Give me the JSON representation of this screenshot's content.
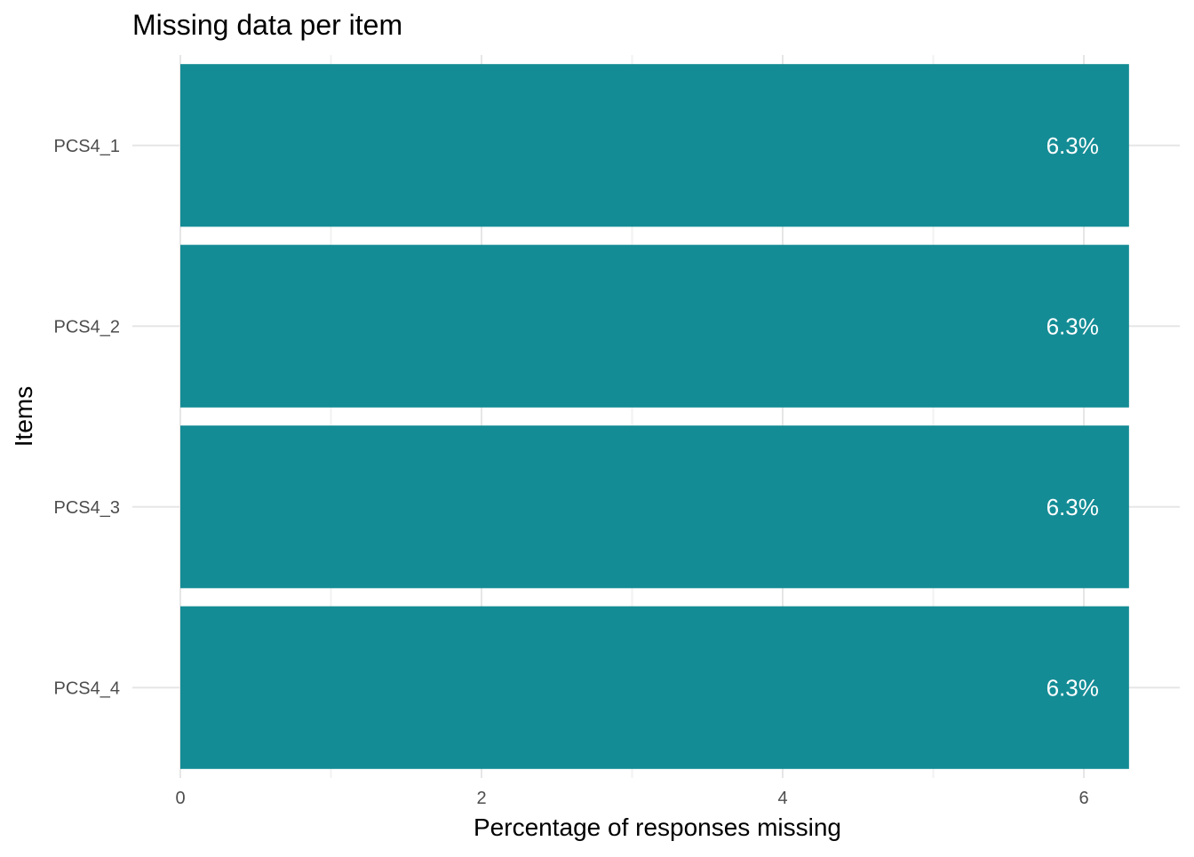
{
  "chart_data": {
    "type": "bar",
    "orientation": "horizontal",
    "title": "Missing data per item",
    "xlabel": "Percentage of responses missing",
    "ylabel": "Items",
    "categories": [
      "PCS4_1",
      "PCS4_2",
      "PCS4_3",
      "PCS4_4"
    ],
    "values": [
      6.3,
      6.3,
      6.3,
      6.3
    ],
    "data_labels": [
      "6.3%",
      "6.3%",
      "6.3%",
      "6.3%"
    ],
    "xlim": [
      0,
      6.6
    ],
    "xticks": [
      0,
      2,
      4,
      6
    ],
    "xtick_labels": [
      "0",
      "2",
      "4",
      "6"
    ],
    "grid": true,
    "legend": "none",
    "colors": {
      "bar": "#148c95",
      "grid_major": "#e6e6e6",
      "grid_minor": "#f2f2f2",
      "tick_text": "#4d4d4d",
      "title_text": "#000000",
      "bar_label_text": "#ffffff"
    }
  }
}
